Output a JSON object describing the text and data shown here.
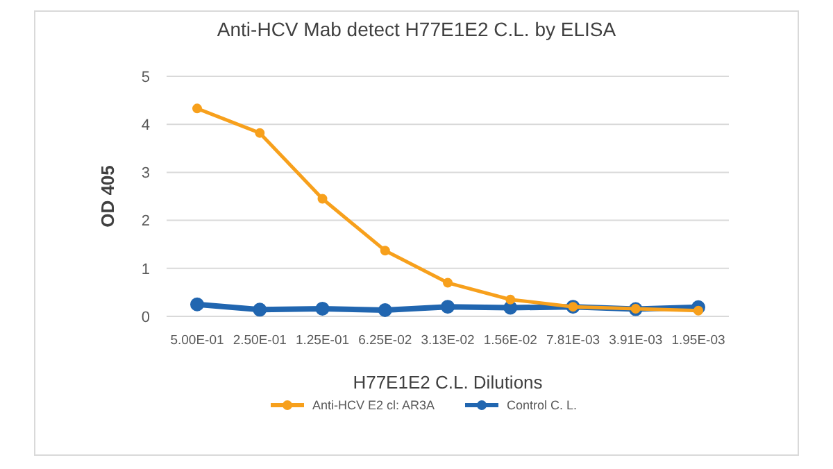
{
  "chart_data": {
    "type": "line",
    "title": "Anti-HCV Mab detect H77E1E2 C.L. by ELISA",
    "xlabel": "H77E1E2 C.L. Dilutions",
    "ylabel": "OD 405",
    "categories": [
      "5.00E-01",
      "2.50E-01",
      "1.25E-01",
      "6.25E-02",
      "3.13E-02",
      "1.56E-02",
      "7.81E-03",
      "3.91E-03",
      "1.95E-03"
    ],
    "series": [
      {
        "name": "Anti-HCV E2 cl: AR3A",
        "color": "#f7a01c",
        "values": [
          4.33,
          3.82,
          2.45,
          1.37,
          0.7,
          0.35,
          0.2,
          0.16,
          0.12
        ]
      },
      {
        "name": "Control C. L.",
        "color": "#2166b0",
        "values": [
          0.25,
          0.14,
          0.16,
          0.13,
          0.2,
          0.18,
          0.2,
          0.15,
          0.19
        ]
      }
    ],
    "ylim": [
      0,
      5
    ],
    "yticks": [
      0,
      1,
      2,
      3,
      4,
      5
    ],
    "grid": "y",
    "legend": "bottom",
    "marker": "circle",
    "line_style": "solid"
  }
}
